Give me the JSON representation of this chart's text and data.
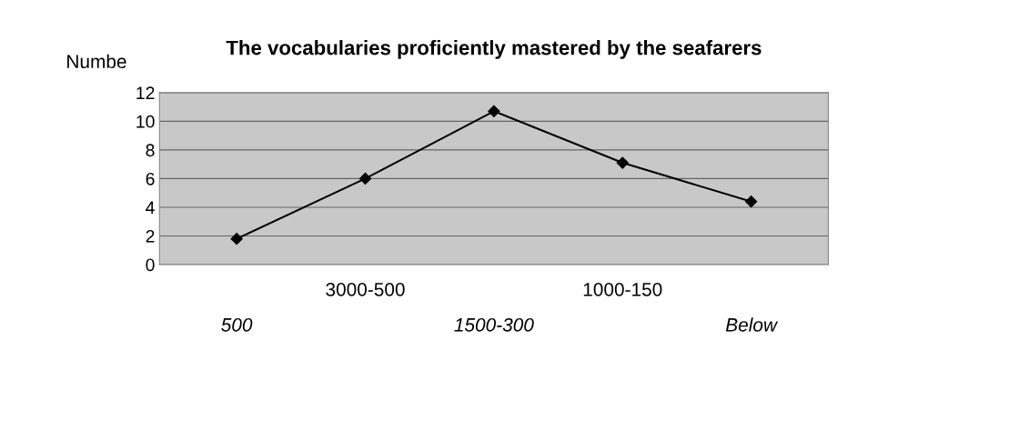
{
  "chart_data": {
    "type": "line",
    "title": "The vocabularies proficiently mastered by the seafarers",
    "ylabel": "Numbe",
    "categories": [
      "500",
      "3000-500",
      "1500-300",
      "1000-150",
      "Below"
    ],
    "series": [
      {
        "color": "#000000",
        "values": [
          1.8,
          6,
          10.7,
          7.1,
          4.4
        ]
      }
    ],
    "ylim": [
      0,
      12
    ],
    "yticks": [
      0,
      2,
      4,
      6,
      8,
      10,
      12
    ],
    "grid": "y",
    "marker": "diamond",
    "line_style": "solid"
  }
}
